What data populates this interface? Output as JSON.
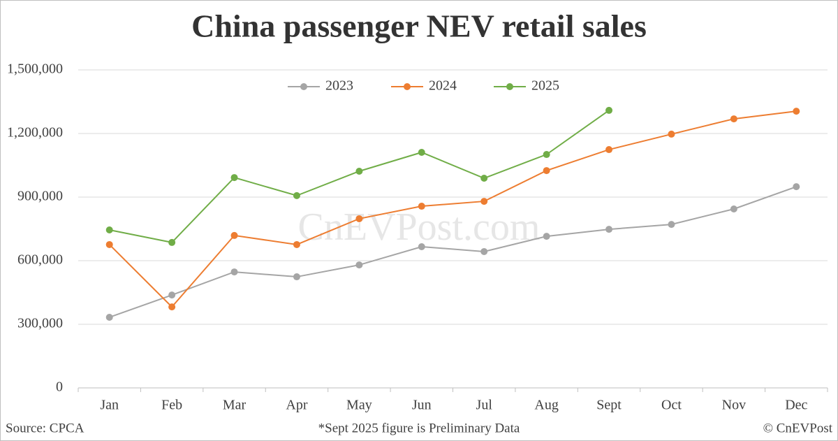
{
  "chart_data": {
    "type": "line",
    "title": "China passenger NEV retail sales",
    "categories": [
      "Jan",
      "Feb",
      "Mar",
      "Apr",
      "May",
      "Jun",
      "Jul",
      "Aug",
      "Sept",
      "Oct",
      "Nov",
      "Dec"
    ],
    "series": [
      {
        "name": "2023",
        "color": "#a5a5a5",
        "values": [
          333000,
          438000,
          547000,
          524000,
          580000,
          666000,
          643000,
          715000,
          748000,
          771000,
          844000,
          949000
        ]
      },
      {
        "name": "2024",
        "color": "#ed7d31",
        "values": [
          676000,
          382000,
          719000,
          676000,
          798000,
          857000,
          880000,
          1025000,
          1124000,
          1197000,
          1269000,
          1305000
        ]
      },
      {
        "name": "2025",
        "color": "#70ad47",
        "values": [
          745000,
          686000,
          992000,
          907000,
          1022000,
          1111000,
          989000,
          1101000,
          1309000,
          null,
          null,
          null
        ]
      }
    ],
    "ylim": [
      0,
      1500000
    ],
    "yticks": [
      0,
      {
        "value": 300000,
        "label": "300,000"
      },
      {
        "value": 600000,
        "label": "600,000"
      },
      {
        "value": 900000,
        "label": "900,000"
      },
      {
        "value": 1200000,
        "label": "1,200,000"
      },
      {
        "value": 1500000,
        "label": "1,500,000"
      }
    ],
    "grid": true,
    "legend": "top",
    "watermark": "CnEVPost.com",
    "source": "Source: CPCA",
    "note": "*Sept 2025 figure is Preliminary Data",
    "credit": "© CnEVPost"
  }
}
